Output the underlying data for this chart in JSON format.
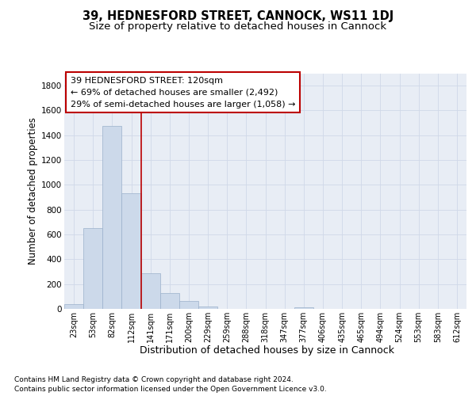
{
  "title": "39, HEDNESFORD STREET, CANNOCK, WS11 1DJ",
  "subtitle": "Size of property relative to detached houses in Cannock",
  "xlabel": "Distribution of detached houses by size in Cannock",
  "ylabel": "Number of detached properties",
  "categories": [
    "23sqm",
    "53sqm",
    "82sqm",
    "112sqm",
    "141sqm",
    "171sqm",
    "200sqm",
    "229sqm",
    "259sqm",
    "288sqm",
    "318sqm",
    "347sqm",
    "377sqm",
    "406sqm",
    "435sqm",
    "465sqm",
    "494sqm",
    "524sqm",
    "553sqm",
    "583sqm",
    "612sqm"
  ],
  "values": [
    38,
    650,
    1475,
    935,
    285,
    128,
    62,
    22,
    0,
    0,
    0,
    0,
    14,
    0,
    0,
    0,
    0,
    0,
    0,
    0,
    0
  ],
  "bar_color": "#ccd9ea",
  "bar_edgecolor": "#9ab0cb",
  "grid_color": "#d0d8e8",
  "bg_color": "#e8edf5",
  "vline_x_pos": 3.5,
  "vline_color": "#bb0000",
  "annotation_text": "39 HEDNESFORD STREET: 120sqm\n← 69% of detached houses are smaller (2,492)\n29% of semi-detached houses are larger (1,058) →",
  "annotation_box_color": "#bb0000",
  "footer_line1": "Contains HM Land Registry data © Crown copyright and database right 2024.",
  "footer_line2": "Contains public sector information licensed under the Open Government Licence v3.0.",
  "ylim": [
    0,
    1900
  ],
  "yticks": [
    0,
    200,
    400,
    600,
    800,
    1000,
    1200,
    1400,
    1600,
    1800
  ],
  "title_fontsize": 10.5,
  "subtitle_fontsize": 9.5,
  "ylabel_fontsize": 8.5,
  "xlabel_fontsize": 9,
  "tick_fontsize": 7,
  "annotation_fontsize": 8,
  "footer_fontsize": 6.5
}
